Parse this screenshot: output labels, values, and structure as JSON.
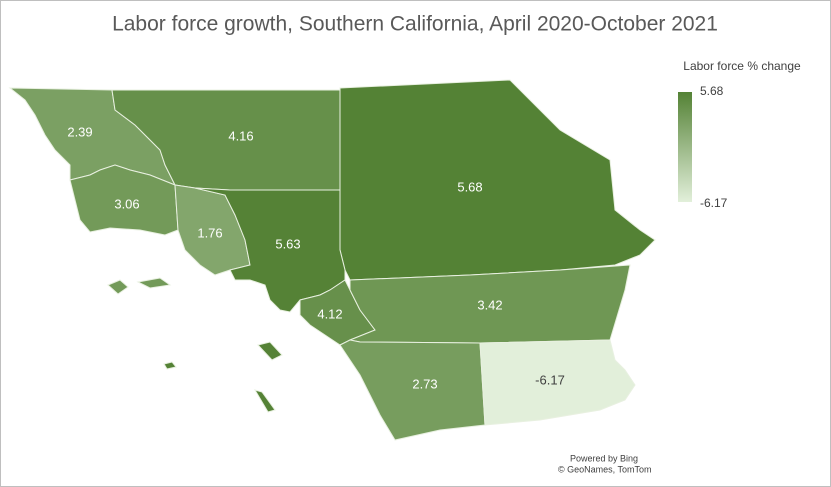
{
  "chart_data": {
    "type": "choropleth",
    "title": "Labor force growth, Southern California, April 2020-October 2021",
    "values": [
      2.39,
      4.16,
      5.68,
      3.06,
      1.76,
      5.63,
      4.12,
      3.42,
      2.73,
      -6.17
    ],
    "legend": {
      "title": "Labor force % change",
      "max": 5.68,
      "min": -6.17,
      "colors": [
        "#e2efda",
        "#548235"
      ]
    },
    "attribution": [
      "Powered by Bing",
      "© GeoNames, TomTom"
    ]
  }
}
